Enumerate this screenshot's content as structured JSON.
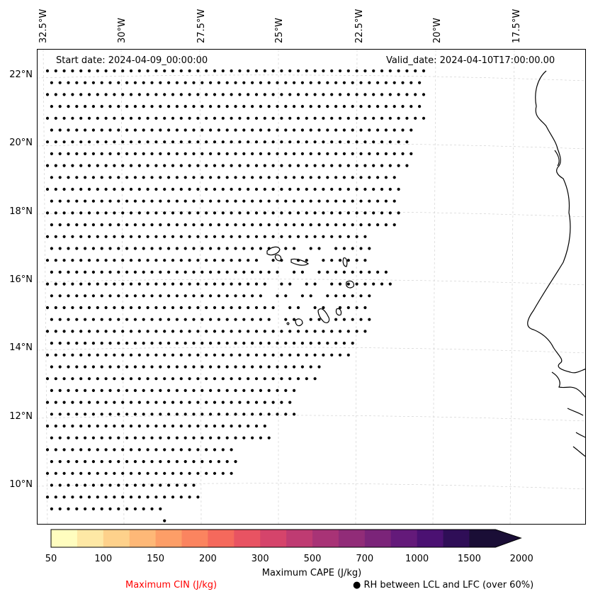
{
  "map": {
    "start_date": "Start date: 2024-04-09_00:00:00",
    "valid_date": "Valid_date: 2024-04-10T17:00:00.00",
    "longitude_labels": [
      "32.5°W",
      "30°W",
      "27.5°W",
      "25°W",
      "22.5°W",
      "20°W",
      "17.5°W"
    ],
    "latitude_labels": [
      "22°N",
      "20°N",
      "18°N",
      "16°N",
      "14°N",
      "12°N",
      "10°N"
    ],
    "extent": {
      "lon_min": -33.0,
      "lon_max": -16.5,
      "lat_min": 8.8,
      "lat_max": 22.7
    },
    "dot_marker": "filled-circle",
    "dot_region_description_note": ""
  },
  "colorbar": {
    "label": "Maximum CAPE (J/kg)",
    "ticks": [
      "50",
      "100",
      "150",
      "200",
      "300",
      "500",
      "700",
      "1000",
      "1500",
      "2000"
    ],
    "colors": [
      "#fffdbf",
      "#fee8a5",
      "#fed18b",
      "#feb877",
      "#fd9e67",
      "#fb845f",
      "#f5695c",
      "#e85362",
      "#d5446b",
      "#bf3b72",
      "#a83376",
      "#912c78",
      "#7b2479",
      "#641a7a",
      "#4b1172",
      "#2f0e57",
      "#1a0e36"
    ],
    "extend": "max"
  },
  "legend": {
    "cin_label": "Maximum CIN (J/kg)",
    "cin_color": "#ff0000",
    "rh_label": "RH between LCL and LFC (over 60%)",
    "rh_marker": "●"
  }
}
